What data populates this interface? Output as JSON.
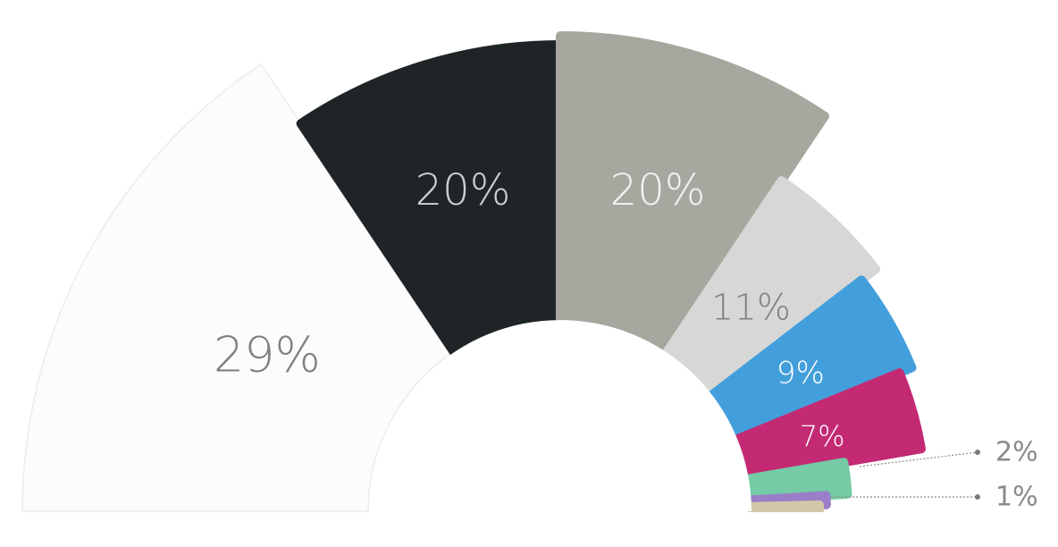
{
  "chart_data": {
    "type": "pie",
    "variant": "semicircle-rose",
    "title": "",
    "slices": [
      {
        "label": "29%",
        "value": 29,
        "color": "#fcfcfc",
        "label_color": "#808080"
      },
      {
        "label": "20%",
        "value": 20,
        "color": "#1f2527",
        "label_color": "#d0d0d0"
      },
      {
        "label": "20%",
        "value": 20,
        "color": "#a7a69f",
        "label_color": "#f2f2f2"
      },
      {
        "label": "11%",
        "value": 11,
        "color": "#d7d7d7",
        "label_color": "#808080"
      },
      {
        "label": "9%",
        "value": 9,
        "color": "#439fdc",
        "label_color": "#ffffff"
      },
      {
        "label": "7%",
        "value": 7,
        "color": "#c32a73",
        "label_color": "#ffffff"
      },
      {
        "label": "2%",
        "value": 2,
        "color": "#74cba5",
        "label_color": "#8a8a8a"
      },
      {
        "label": "1%",
        "value": 1,
        "color": "#9b7ec8",
        "label_color": "#8a8a8a"
      },
      {
        "label": "",
        "value": 1,
        "color": "#d3c7a9",
        "label_color": "#8a8a8a"
      }
    ]
  }
}
